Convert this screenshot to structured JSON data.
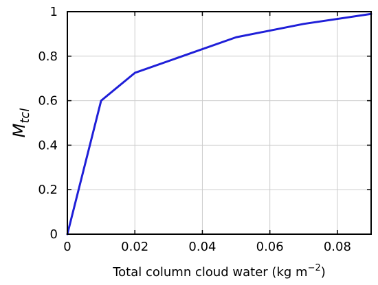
{
  "chart_data": {
    "type": "line",
    "title": "",
    "xlabel": "Total column cloud water (kg m",
    "xlabel_sup": "−2",
    "xlabel_suffix": ")",
    "ylabel_main": "M",
    "ylabel_sub": "tcl",
    "xlim": [
      0,
      0.09
    ],
    "ylim": [
      0,
      1
    ],
    "xticks": [
      0,
      0.02,
      0.04,
      0.06,
      0.08
    ],
    "xtick_labels": [
      "0",
      "0.02",
      "0.04",
      "0.06",
      "0.08"
    ],
    "yticks": [
      0,
      0.2,
      0.4,
      0.6,
      0.8,
      1
    ],
    "ytick_labels": [
      "0",
      "0.2",
      "0.4",
      "0.6",
      "0.8",
      "1"
    ],
    "grid": true,
    "series": [
      {
        "color": "#1f1fd8",
        "x": [
          0,
          0.01,
          0.02,
          0.05,
          0.07,
          0.09
        ],
        "y": [
          0,
          0.6,
          0.725,
          0.885,
          0.945,
          0.99
        ]
      }
    ]
  }
}
